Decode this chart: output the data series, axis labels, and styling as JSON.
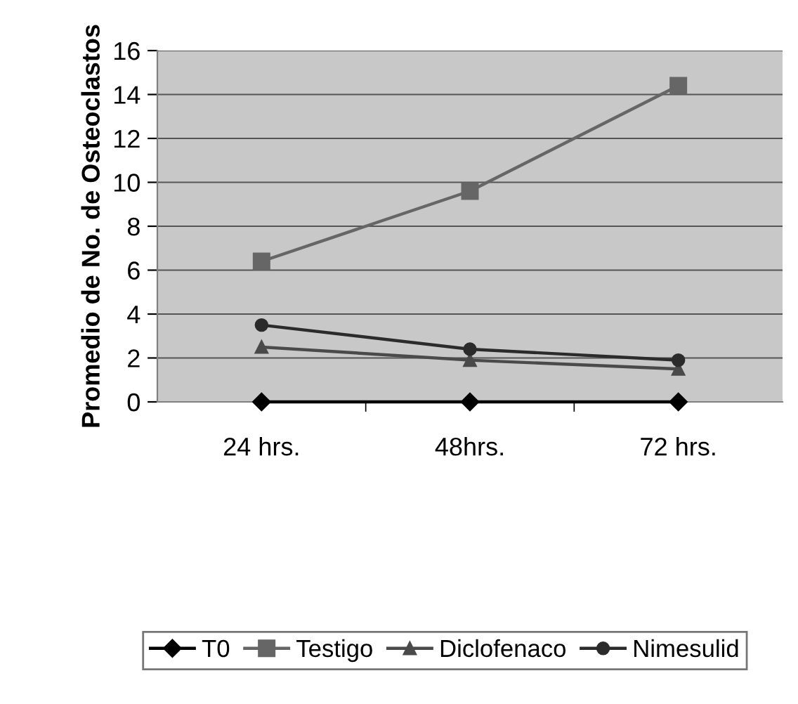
{
  "chart_data": {
    "type": "line",
    "ylabel": "Promedio de No. de Osteoclastos",
    "categories": [
      "24 hrs.",
      "48hrs.",
      "72 hrs."
    ],
    "series": [
      {
        "name": "T0",
        "color": "#000000",
        "marker": "diamond",
        "values": [
          0,
          0,
          0
        ]
      },
      {
        "name": "Testigo",
        "color": "#666666",
        "marker": "square",
        "values": [
          6.4,
          9.6,
          14.4
        ]
      },
      {
        "name": "Diclofenaco",
        "color": "#4a4a4a",
        "marker": "triangle",
        "values": [
          2.5,
          1.9,
          1.5
        ]
      },
      {
        "name": "Nimesulid",
        "color": "#2b2b2b",
        "marker": "circle",
        "values": [
          3.5,
          2.4,
          1.9
        ]
      }
    ],
    "ylim": [
      0,
      16
    ],
    "yticks": [
      0,
      2,
      4,
      6,
      8,
      10,
      12,
      14,
      16
    ],
    "grid": "y",
    "legend": "bottom"
  }
}
